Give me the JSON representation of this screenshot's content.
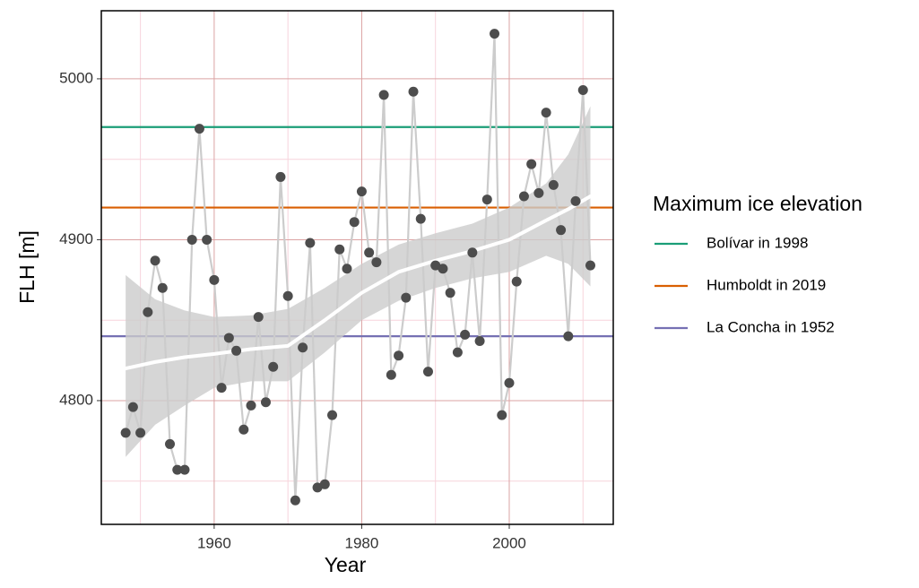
{
  "chart_data": {
    "type": "line",
    "xlabel": "Year",
    "ylabel": "FLH [m]",
    "x": [
      1948,
      1949,
      1950,
      1951,
      1952,
      1953,
      1954,
      1955,
      1956,
      1957,
      1958,
      1959,
      1960,
      1961,
      1962,
      1963,
      1964,
      1965,
      1966,
      1967,
      1968,
      1969,
      1970,
      1971,
      1972,
      1973,
      1974,
      1975,
      1976,
      1977,
      1978,
      1979,
      1980,
      1981,
      1982,
      1983,
      1984,
      1985,
      1986,
      1987,
      1988,
      1989,
      1990,
      1991,
      1992,
      1993,
      1994,
      1995,
      1996,
      1997,
      1998,
      1999,
      2000,
      2001,
      2002,
      2003,
      2004,
      2005,
      2006,
      2007,
      2008,
      2009,
      2010,
      2011
    ],
    "values": [
      4780,
      4796,
      4780,
      4855,
      4887,
      4870,
      4773,
      4757,
      4757,
      4900,
      4969,
      4900,
      4875,
      4808,
      4839,
      4831,
      4782,
      4797,
      4852,
      4799,
      4821,
      4939,
      4865,
      4738,
      4833,
      4898,
      4746,
      4748,
      4791,
      4894,
      4882,
      4911,
      4930,
      4892,
      4886,
      4990,
      4816,
      4828,
      4864,
      4992,
      4913,
      4818,
      4884,
      4882,
      4867,
      4830,
      4841,
      4892,
      4837,
      4925,
      5028,
      4791,
      4811,
      4874,
      4927,
      4947,
      4929,
      4979,
      4934,
      4906,
      4840,
      4924,
      4993,
      4884
    ],
    "line_color": "#cccccc",
    "point_color": "#4d4d4d",
    "smooth": {
      "x": [
        1948,
        1952,
        1956,
        1960,
        1965,
        1970,
        1975,
        1980,
        1985,
        1990,
        1995,
        2000,
        2005,
        2008,
        2011
      ],
      "values": [
        4820,
        4824,
        4827,
        4829,
        4832,
        4834,
        4850,
        4867,
        4880,
        4887,
        4893,
        4900,
        4912,
        4919,
        4927
      ],
      "lower": [
        4765,
        4785,
        4797,
        4808,
        4812,
        4812,
        4830,
        4850,
        4862,
        4870,
        4876,
        4880,
        4890,
        4885,
        4871
      ],
      "upper": [
        4878,
        4863,
        4856,
        4852,
        4853,
        4857,
        4870,
        4885,
        4897,
        4904,
        4910,
        4920,
        4935,
        4953,
        4983
      ],
      "color": "#ffffff",
      "band_color": "#cccccc"
    },
    "hlines": [
      {
        "name": "Bolívar in 1998",
        "value": 4970,
        "color": "#1b9e77"
      },
      {
        "name": "Humboldt in 2019",
        "value": 4920,
        "color": "#d95f02"
      },
      {
        "name": "La Concha in 1952",
        "value": 4840,
        "color": "#7570b3"
      }
    ],
    "legend_title": "Maximum ice elevation",
    "legend": "right",
    "xlim": [
      1944.7,
      2014.1
    ],
    "ylim": [
      4723.1,
      5042.3
    ],
    "xticks": [
      1960,
      1980,
      2000
    ],
    "yticks": [
      4800,
      4900,
      5000
    ],
    "xminor": [
      1950,
      1970,
      1990,
      2010
    ],
    "yminor": [
      4750,
      4850,
      4950
    ],
    "grid": true,
    "grid_color": "#dba3a3",
    "minor_grid_color": "#f7d4dc"
  }
}
